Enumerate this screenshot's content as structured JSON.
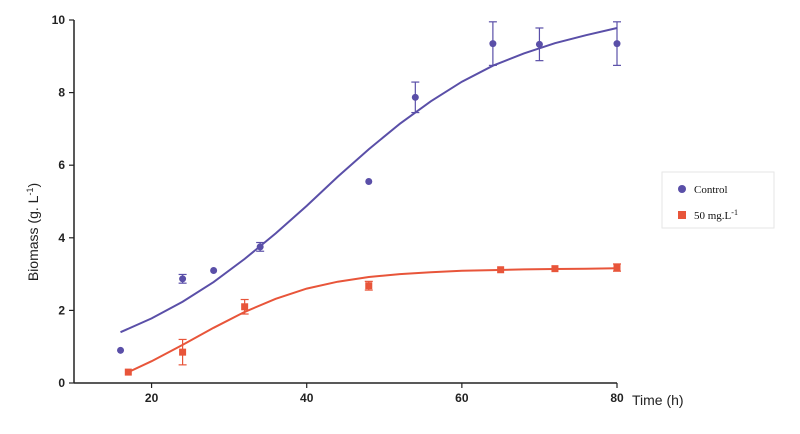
{
  "chart_data": {
    "type": "scatter",
    "xlabel": "Time (h)",
    "ylabel": "Biomass (g. L",
    "ylabel_sup": "-1",
    "ylabel_close": ")",
    "xlim": [
      10,
      80
    ],
    "ylim": [
      0,
      10
    ],
    "xticks": [
      20,
      40,
      60,
      80
    ],
    "yticks": [
      0,
      2,
      4,
      6,
      8,
      10
    ],
    "grid": false,
    "legend_position": "right",
    "series": [
      {
        "name": "Control",
        "color": "#5a4fa8",
        "marker": "circle",
        "x": [
          16,
          24,
          28,
          34,
          48,
          54,
          64,
          70,
          80
        ],
        "y": [
          0.9,
          2.87,
          3.1,
          3.75,
          5.55,
          7.87,
          9.35,
          9.33,
          9.35
        ],
        "err": [
          0,
          0.12,
          0,
          0.12,
          0,
          0.42,
          0.6,
          0.45,
          0.6
        ],
        "fit_x": [
          16,
          20,
          24,
          28,
          32,
          36,
          40,
          44,
          48,
          52,
          56,
          60,
          64,
          68,
          72,
          76,
          80
        ],
        "fit_y": [
          1.4,
          1.78,
          2.24,
          2.78,
          3.42,
          4.12,
          4.88,
          5.68,
          6.44,
          7.14,
          7.76,
          8.3,
          8.74,
          9.08,
          9.36,
          9.58,
          9.78
        ]
      },
      {
        "name": "50 mg.L",
        "name_sup": "-1",
        "color": "#e8553a",
        "marker": "square",
        "x": [
          17,
          24,
          32,
          48,
          65,
          72,
          80
        ],
        "y": [
          0.3,
          0.85,
          2.1,
          2.68,
          3.12,
          3.15,
          3.18
        ],
        "err": [
          0,
          0.35,
          0.2,
          0.12,
          0,
          0,
          0.1
        ],
        "fit_x": [
          17,
          20,
          24,
          28,
          32,
          36,
          40,
          44,
          48,
          52,
          56,
          60,
          64,
          68,
          72,
          76,
          80
        ],
        "fit_y": [
          0.3,
          0.6,
          1.05,
          1.52,
          1.96,
          2.32,
          2.6,
          2.79,
          2.92,
          3.0,
          3.05,
          3.09,
          3.11,
          3.13,
          3.14,
          3.15,
          3.16
        ]
      }
    ]
  }
}
